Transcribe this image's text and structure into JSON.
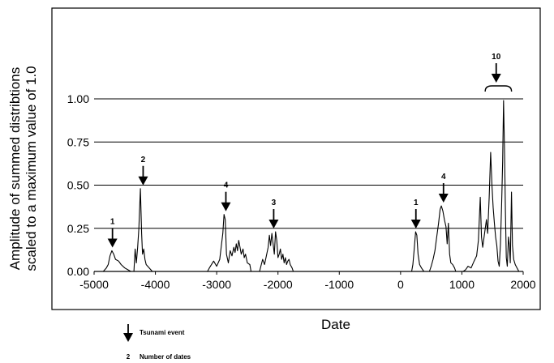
{
  "chart_data": {
    "type": "line",
    "title": "",
    "xlabel": "Date",
    "ylabel_lines": [
      "Amplitude of summed distribtions",
      "scaled to a maximum value of 1.0"
    ],
    "xlim": [
      -5000,
      2000
    ],
    "ylim": [
      0,
      1.0
    ],
    "x_ticks": [
      -5000,
      -4000,
      -3000,
      -2000,
      -1000,
      0,
      1000,
      2000
    ],
    "x_tick_labels": [
      "-5000",
      "-4000",
      "-3000",
      "-2000",
      "-1000",
      "0",
      "1000",
      "2000"
    ],
    "y_ticks": [
      0,
      0.25,
      0.5,
      0.75,
      1.0
    ],
    "y_tick_labels": [
      "0.00",
      "0.25",
      "0.50",
      "0.75",
      "1.00"
    ],
    "grid": "horizontal",
    "line_color": "#000000",
    "series": [
      {
        "points": [
          [
            -4850,
            0
          ],
          [
            -4800,
            0.02
          ],
          [
            -4770,
            0.04
          ],
          [
            -4740,
            0.09
          ],
          [
            -4710,
            0.12
          ],
          [
            -4680,
            0.1
          ],
          [
            -4650,
            0.07
          ],
          [
            -4600,
            0.06
          ],
          [
            -4560,
            0.04
          ],
          [
            -4500,
            0.02
          ],
          [
            -4450,
            0.01
          ],
          [
            -4400,
            0
          ],
          [
            -4350,
            0
          ],
          [
            -4330,
            0.13
          ],
          [
            -4310,
            0.05
          ],
          [
            -4290,
            0.14
          ],
          [
            -4270,
            0.25
          ],
          [
            -4245,
            0.48
          ],
          [
            -4225,
            0.22
          ],
          [
            -4210,
            0.1
          ],
          [
            -4190,
            0.13
          ],
          [
            -4170,
            0.07
          ],
          [
            -4150,
            0.04
          ],
          [
            -4100,
            0.02
          ],
          [
            -4050,
            0
          ],
          [
            -3150,
            0
          ],
          [
            -3120,
            0.02
          ],
          [
            -3050,
            0.06
          ],
          [
            -3000,
            0.03
          ],
          [
            -2950,
            0.07
          ],
          [
            -2900,
            0.22
          ],
          [
            -2880,
            0.33
          ],
          [
            -2860,
            0.3
          ],
          [
            -2840,
            0.1
          ],
          [
            -2810,
            0.05
          ],
          [
            -2780,
            0.12
          ],
          [
            -2750,
            0.09
          ],
          [
            -2720,
            0.14
          ],
          [
            -2700,
            0.11
          ],
          [
            -2680,
            0.16
          ],
          [
            -2660,
            0.12
          ],
          [
            -2640,
            0.18
          ],
          [
            -2620,
            0.14
          ],
          [
            -2600,
            0.1
          ],
          [
            -2570,
            0.13
          ],
          [
            -2550,
            0.08
          ],
          [
            -2530,
            0.1
          ],
          [
            -2500,
            0.05
          ],
          [
            -2460,
            0.04
          ],
          [
            -2440,
            0
          ],
          [
            -2300,
            0
          ],
          [
            -2280,
            0.03
          ],
          [
            -2250,
            0.07
          ],
          [
            -2220,
            0.04
          ],
          [
            -2190,
            0.09
          ],
          [
            -2160,
            0.14
          ],
          [
            -2140,
            0.21
          ],
          [
            -2120,
            0.15
          ],
          [
            -2100,
            0.22
          ],
          [
            -2080,
            0.16
          ],
          [
            -2060,
            0.1
          ],
          [
            -2040,
            0.23
          ],
          [
            -2020,
            0.18
          ],
          [
            -2000,
            0.08
          ],
          [
            -1980,
            0.1
          ],
          [
            -1960,
            0.13
          ],
          [
            -1940,
            0.07
          ],
          [
            -1920,
            0.1
          ],
          [
            -1900,
            0.05
          ],
          [
            -1880,
            0.08
          ],
          [
            -1860,
            0.04
          ],
          [
            -1840,
            0.06
          ],
          [
            -1820,
            0.07
          ],
          [
            -1800,
            0.04
          ],
          [
            -1770,
            0.02
          ],
          [
            -1750,
            0
          ],
          [
            180,
            0
          ],
          [
            200,
            0.04
          ],
          [
            220,
            0.12
          ],
          [
            245,
            0.23
          ],
          [
            265,
            0.21
          ],
          [
            285,
            0.1
          ],
          [
            310,
            0.04
          ],
          [
            340,
            0.02
          ],
          [
            380,
            0
          ],
          [
            470,
            0
          ],
          [
            500,
            0.03
          ],
          [
            530,
            0.07
          ],
          [
            560,
            0.12
          ],
          [
            590,
            0.2
          ],
          [
            620,
            0.28
          ],
          [
            645,
            0.36
          ],
          [
            665,
            0.38
          ],
          [
            690,
            0.35
          ],
          [
            715,
            0.3
          ],
          [
            740,
            0.26
          ],
          [
            760,
            0.16
          ],
          [
            780,
            0.28
          ],
          [
            800,
            0.1
          ],
          [
            820,
            0.05
          ],
          [
            850,
            0.04
          ],
          [
            880,
            0.02
          ],
          [
            900,
            0
          ],
          [
            1020,
            0
          ],
          [
            1060,
            0.01
          ],
          [
            1100,
            0.03
          ],
          [
            1150,
            0.02
          ],
          [
            1200,
            0.06
          ],
          [
            1240,
            0.09
          ],
          [
            1270,
            0.18
          ],
          [
            1300,
            0.43
          ],
          [
            1320,
            0.2
          ],
          [
            1340,
            0.14
          ],
          [
            1370,
            0.22
          ],
          [
            1400,
            0.3
          ],
          [
            1420,
            0.22
          ],
          [
            1445,
            0.43
          ],
          [
            1470,
            0.69
          ],
          [
            1490,
            0.5
          ],
          [
            1510,
            0.37
          ],
          [
            1530,
            0.28
          ],
          [
            1550,
            0.2
          ],
          [
            1570,
            0.15
          ],
          [
            1590,
            0.06
          ],
          [
            1610,
            0.03
          ],
          [
            1630,
            0.16
          ],
          [
            1650,
            0.4
          ],
          [
            1665,
            0.64
          ],
          [
            1680,
            0.99
          ],
          [
            1695,
            0.7
          ],
          [
            1710,
            0.35
          ],
          [
            1725,
            0.08
          ],
          [
            1740,
            0.03
          ],
          [
            1760,
            0.2
          ],
          [
            1775,
            0.15
          ],
          [
            1790,
            0.05
          ],
          [
            1810,
            0.46
          ],
          [
            1825,
            0.15
          ],
          [
            1845,
            0.07
          ],
          [
            1870,
            0.04
          ],
          [
            1900,
            0.02
          ],
          [
            1930,
            0
          ]
        ]
      }
    ],
    "event_markers": [
      {
        "x": -4700,
        "count": "1"
      },
      {
        "x": -4200,
        "count": "2"
      },
      {
        "x": -2850,
        "count": "4"
      },
      {
        "x": -2070,
        "count": "3"
      },
      {
        "x": 250,
        "count": "1"
      },
      {
        "x": 700,
        "count": "4"
      },
      {
        "x": 1560,
        "count": "10",
        "bracket": [
          1380,
          1810
        ]
      }
    ],
    "legend": [
      {
        "symbol": "arrow",
        "label": "Tsunami event"
      },
      {
        "symbol": "2",
        "label": "Number of dates"
      }
    ]
  }
}
